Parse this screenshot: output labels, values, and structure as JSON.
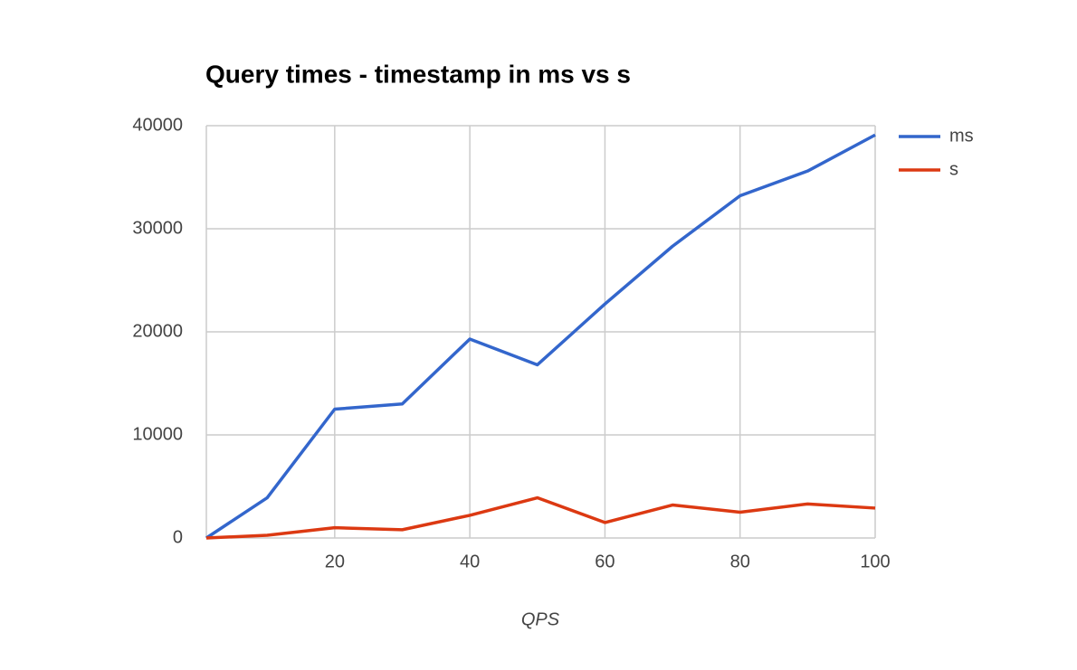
{
  "chart_data": {
    "type": "line",
    "title": "Query times - timestamp in ms vs s",
    "x_label": "QPS",
    "x": [
      1,
      10,
      20,
      30,
      40,
      50,
      60,
      70,
      80,
      90,
      100
    ],
    "series": [
      {
        "name": "ms",
        "color": "#3366cc",
        "values": [
          0,
          3900,
          12500,
          13000,
          19300,
          16800,
          22700,
          28300,
          33200,
          35600,
          39100
        ]
      },
      {
        "name": "s",
        "color": "#dc3912",
        "values": [
          0,
          260,
          1000,
          800,
          2200,
          3900,
          1500,
          3200,
          2500,
          3300,
          2900
        ]
      }
    ],
    "xlim": [
      1,
      100
    ],
    "xticks": [
      20,
      40,
      60,
      80,
      100
    ],
    "ylim": [
      0,
      40000
    ],
    "yticks": [
      0,
      10000,
      20000,
      30000,
      40000
    ],
    "grid": true,
    "legend": "right"
  }
}
